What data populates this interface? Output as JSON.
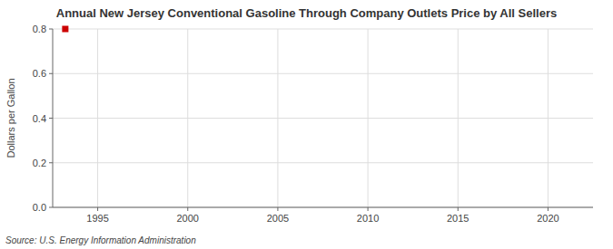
{
  "chart_data": {
    "type": "scatter",
    "title": "Annual New Jersey Conventional Gasoline Through Company Outlets Price by All Sellers",
    "y_label": "Dollars per Gallon",
    "annotations": [
      "Source: U.S. Energy Information Administration"
    ],
    "x": [
      1993.2
    ],
    "values": [
      0.8
    ],
    "color": "#cc0000",
    "marker": "square",
    "xlim": [
      1992.5,
      2022.5
    ],
    "xticks": [
      1995,
      2000,
      2005,
      2010,
      2015,
      2020
    ],
    "ylim": [
      0.0,
      0.8
    ],
    "yticks": [
      {
        "value": 0,
        "label": "0.0"
      },
      0.2,
      0.4,
      0.6,
      0.8
    ],
    "grid": true
  }
}
